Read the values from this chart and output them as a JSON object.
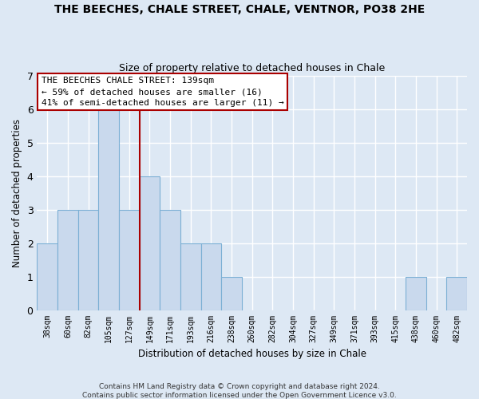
{
  "title1": "THE BEECHES, CHALE STREET, CHALE, VENTNOR, PO38 2HE",
  "title2": "Size of property relative to detached houses in Chale",
  "xlabel": "Distribution of detached houses by size in Chale",
  "ylabel": "Number of detached properties",
  "categories": [
    "38sqm",
    "60sqm",
    "82sqm",
    "105sqm",
    "127sqm",
    "149sqm",
    "171sqm",
    "193sqm",
    "216sqm",
    "238sqm",
    "260sqm",
    "282sqm",
    "304sqm",
    "327sqm",
    "349sqm",
    "371sqm",
    "393sqm",
    "415sqm",
    "438sqm",
    "460sqm",
    "482sqm"
  ],
  "values": [
    2,
    3,
    3,
    6,
    3,
    4,
    3,
    2,
    2,
    1,
    0,
    0,
    0,
    0,
    0,
    0,
    0,
    0,
    1,
    0,
    1
  ],
  "bar_color": "#c9d9ed",
  "bar_edge_color": "#7bafd4",
  "vline_x": 4.5,
  "vline_color": "#aa0000",
  "annotation_text": "THE BEECHES CHALE STREET: 139sqm\n← 59% of detached houses are smaller (16)\n41% of semi-detached houses are larger (11) →",
  "ylim": [
    0,
    7
  ],
  "yticks": [
    0,
    1,
    2,
    3,
    4,
    5,
    6,
    7
  ],
  "background_color": "#dde8f4",
  "plot_bg_color": "#dde8f4",
  "grid_color": "#ffffff",
  "annotation_box_color": "#ffffff",
  "annotation_box_edge": "#aa0000",
  "footer": "Contains HM Land Registry data © Crown copyright and database right 2024.\nContains public sector information licensed under the Open Government Licence v3.0."
}
